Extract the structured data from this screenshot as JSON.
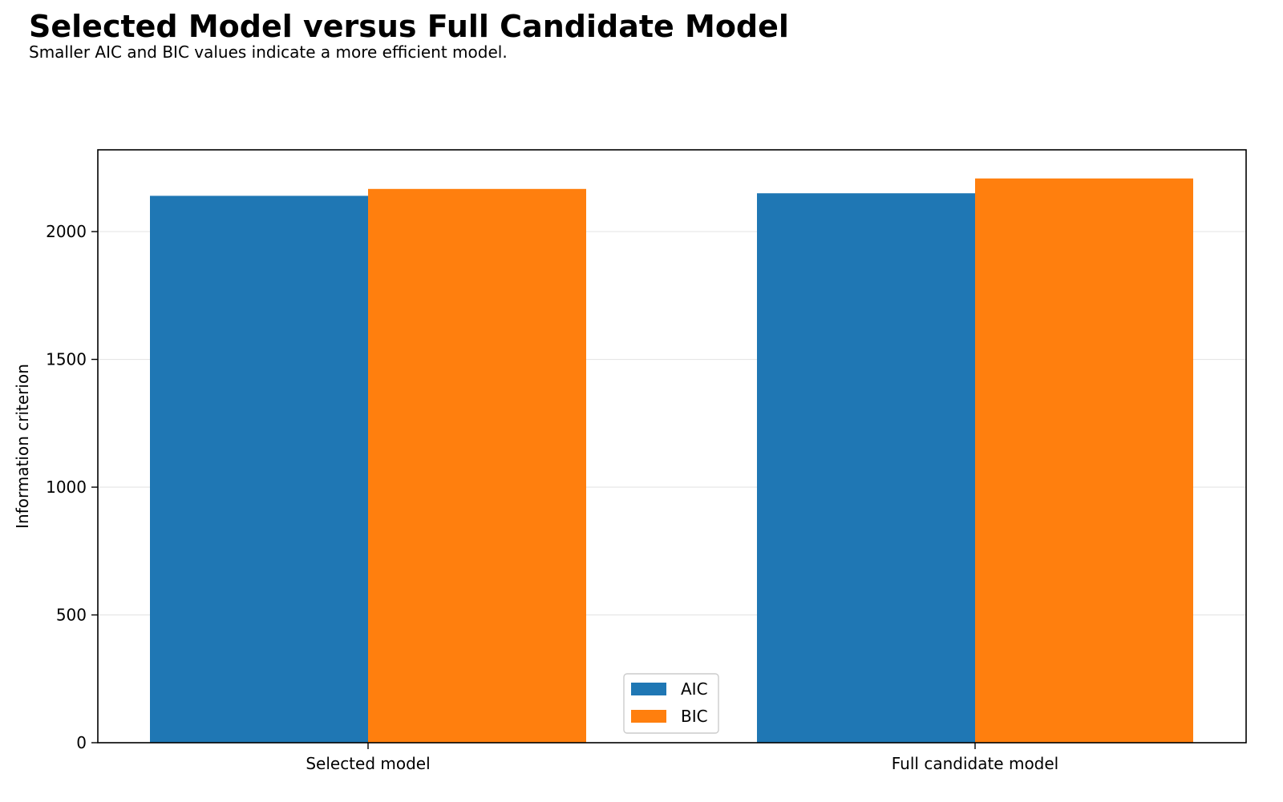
{
  "chart_data": {
    "type": "bar",
    "title": "Selected Model versus Full Candidate Model",
    "subtitle": "Smaller AIC and BIC values indicate a more efficient model.",
    "xlabel": "",
    "ylabel": "Information criterion",
    "categories": [
      "Selected model",
      "Full candidate model"
    ],
    "series": [
      {
        "name": "AIC",
        "color": "#1f77b4",
        "values": [
          2140,
          2150
        ]
      },
      {
        "name": "BIC",
        "color": "#ff7f0e",
        "values": [
          2167,
          2208
        ]
      }
    ],
    "ylim": [
      0,
      2320
    ],
    "yticks": [
      0,
      500,
      1000,
      1500,
      2000
    ],
    "grid": "y",
    "legend_position": "bottom-center"
  }
}
